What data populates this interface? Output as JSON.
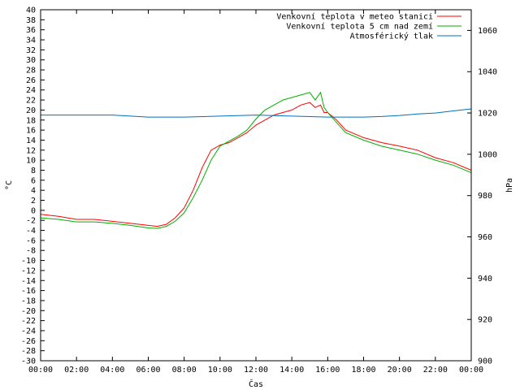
{
  "chart_data": {
    "type": "line",
    "xlabel": "Čas",
    "ylabel": "°C",
    "y2label": "hPa",
    "xlim": [
      0,
      24
    ],
    "ylim": [
      -30,
      40
    ],
    "y2lim": [
      900,
      1070
    ],
    "x_ticks": [
      "00:00",
      "02:00",
      "04:00",
      "06:00",
      "08:00",
      "10:00",
      "12:00",
      "14:00",
      "16:00",
      "18:00",
      "20:00",
      "22:00",
      "00:00"
    ],
    "y_ticks": [
      40,
      38,
      36,
      34,
      32,
      30,
      28,
      26,
      24,
      22,
      20,
      18,
      16,
      14,
      12,
      10,
      8,
      6,
      4,
      2,
      0,
      -2,
      -4,
      -6,
      -8,
      -10,
      -12,
      -14,
      -16,
      -18,
      -20,
      -22,
      -24,
      -26,
      -28,
      -30
    ],
    "y2_ticks": [
      1060,
      1040,
      1020,
      1000,
      980,
      960,
      940,
      920,
      900
    ],
    "legend_position": "top-right",
    "series": [
      {
        "name": "Venkovní teplota v meteo stanici",
        "color": "#ff0000",
        "axis": "left",
        "x": [
          0,
          1,
          2,
          3,
          4,
          5,
          6,
          6.5,
          7,
          7.5,
          8,
          8.5,
          9,
          9.5,
          10,
          10.5,
          11,
          11.5,
          12,
          12.5,
          13,
          13.5,
          14,
          14.5,
          15,
          15.3,
          15.6,
          15.8,
          16,
          16.5,
          17,
          18,
          19,
          20,
          21,
          22,
          23,
          24
        ],
        "values": [
          -0.8,
          -1.2,
          -1.8,
          -1.8,
          -2.2,
          -2.6,
          -3.0,
          -3.2,
          -2.8,
          -1.5,
          0.5,
          4.0,
          8.5,
          12.0,
          13.0,
          13.5,
          14.5,
          15.5,
          17.0,
          18.0,
          19.0,
          19.5,
          20.0,
          21.0,
          21.5,
          20.5,
          21.0,
          19.5,
          19.5,
          18.0,
          16.0,
          14.5,
          13.5,
          12.8,
          12.0,
          10.5,
          9.5,
          8.0
        ]
      },
      {
        "name": "Venkovní teplota 5 cm nad zemí",
        "color": "#00b000",
        "axis": "left",
        "x": [
          0,
          1,
          2,
          3,
          4,
          5,
          6,
          6.5,
          7,
          7.5,
          8,
          8.5,
          9,
          9.5,
          10,
          10.5,
          11,
          11.5,
          12,
          12.5,
          13,
          13.5,
          14,
          14.5,
          15,
          15.3,
          15.6,
          15.8,
          16,
          16.5,
          17,
          18,
          19,
          20,
          21,
          22,
          23,
          24
        ],
        "values": [
          -1.5,
          -1.8,
          -2.3,
          -2.3,
          -2.6,
          -3.0,
          -3.5,
          -3.6,
          -3.2,
          -2.2,
          -0.5,
          2.5,
          6.0,
          10.0,
          12.8,
          13.8,
          14.8,
          16.0,
          18.2,
          20.0,
          21.0,
          22.0,
          22.5,
          23.0,
          23.5,
          22.0,
          23.5,
          20.5,
          19.5,
          17.5,
          15.5,
          14.0,
          12.8,
          12.0,
          11.2,
          10.0,
          9.0,
          7.5
        ]
      },
      {
        "name": "Atmosférický tlak",
        "color": "#0070c0",
        "axis": "right",
        "x": [
          0,
          2,
          4,
          6,
          8,
          10,
          12,
          14,
          16,
          17,
          18,
          19,
          20,
          21,
          22,
          23,
          24
        ],
        "values": [
          1019,
          1019,
          1019,
          1018,
          1018,
          1018.5,
          1019,
          1018.5,
          1018,
          1018,
          1018,
          1018.3,
          1018.8,
          1019.5,
          1020,
          1021,
          1022
        ]
      }
    ]
  }
}
